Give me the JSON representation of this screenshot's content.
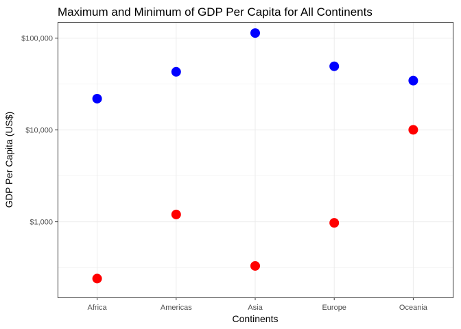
{
  "chart_data": {
    "type": "scatter",
    "title": "Maximum and Minimum of GDP Per Capita for All Continents",
    "xlabel": "Continents",
    "ylabel": "GDP Per Capita (US$)",
    "categories": [
      "Africa",
      "Americas",
      "Asia",
      "Europe",
      "Oceania"
    ],
    "y_scale": "log10",
    "ylim": [
      150,
      150000
    ],
    "y_ticks": [
      1000,
      10000,
      100000
    ],
    "y_tick_labels": [
      "$1,000",
      "$10,000",
      "$100,000"
    ],
    "grid": true,
    "legend": "none",
    "series": [
      {
        "color": "#0000ff",
        "values": [
          21900,
          42950,
          113500,
          49350,
          34450
        ]
      },
      {
        "color": "#ff0000",
        "values": [
          241,
          1202,
          331,
          974,
          10040
        ]
      }
    ]
  }
}
